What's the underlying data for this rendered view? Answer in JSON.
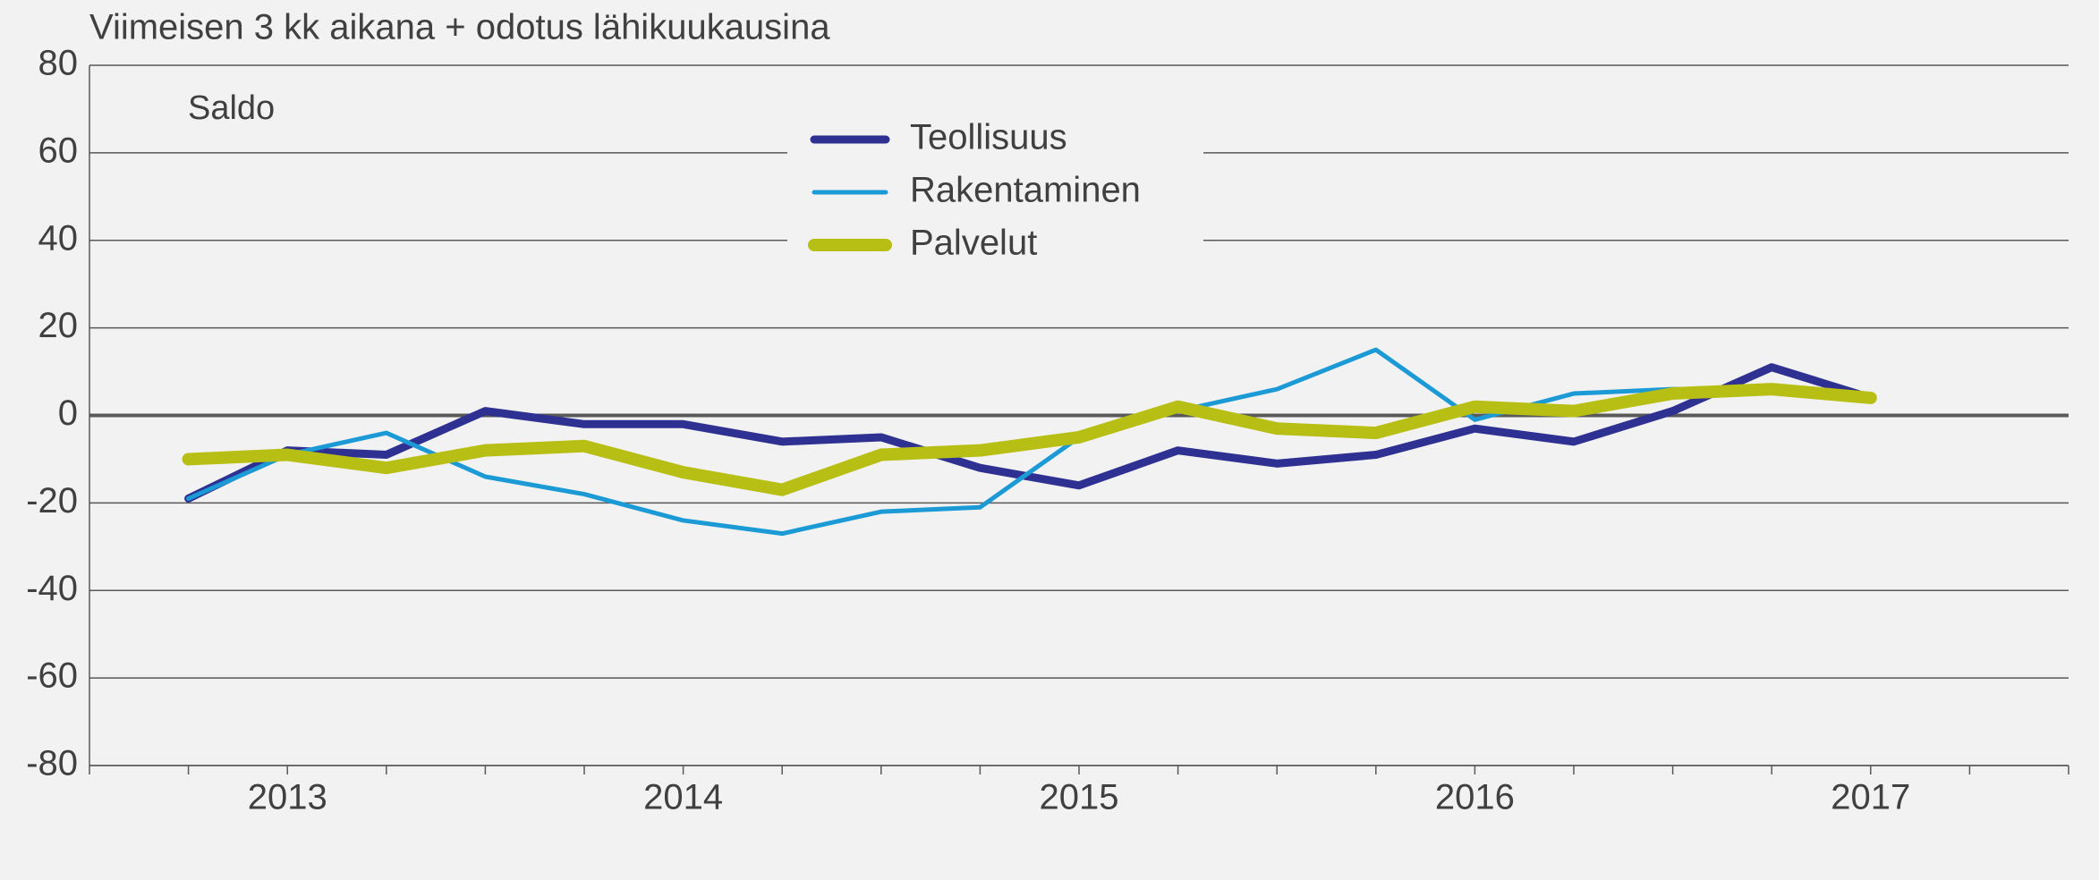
{
  "chart_data": {
    "type": "line",
    "title": "Viimeisen 3 kk aikana + odotus lähikuukausina",
    "y_label": "Saldo",
    "categories": [
      null,
      "2013",
      null,
      null,
      null,
      "2014",
      null,
      null,
      null,
      "2015",
      null,
      null,
      null,
      "2016",
      null,
      null,
      null,
      "2017"
    ],
    "series": [
      {
        "name": "Teollisuus",
        "color": "#2e3192",
        "width": 9,
        "values": [
          -19,
          -8,
          -9,
          1,
          -2,
          -2,
          -6,
          -5,
          -12,
          -16,
          -8,
          -11,
          -9,
          -3,
          -6,
          1,
          11,
          4
        ]
      },
      {
        "name": "Rakentaminen",
        "color": "#1b9ad6",
        "width": 5,
        "values": [
          -19,
          -9,
          -4,
          -14,
          -18,
          -24,
          -27,
          -22,
          -21,
          -5,
          1,
          6,
          15,
          -1,
          5,
          6,
          6,
          4
        ]
      },
      {
        "name": "Palvelut",
        "color": "#b8bf14",
        "width": 14,
        "values": [
          -10,
          -9,
          -12,
          -8,
          -7,
          -13,
          -17,
          -9,
          -8,
          -5,
          2,
          -3,
          -4,
          2,
          1,
          5,
          6,
          4
        ]
      }
    ],
    "ylim": [
      -80,
      80
    ],
    "yticks": [
      -80,
      -60,
      -40,
      -20,
      0,
      20,
      40,
      60,
      80
    ],
    "grid": true,
    "legend": "top"
  }
}
